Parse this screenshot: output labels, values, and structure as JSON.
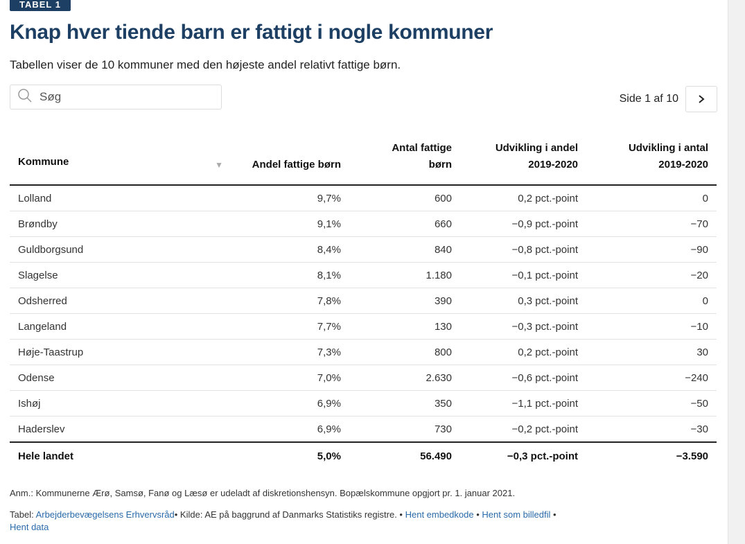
{
  "badge": "TABEL 1",
  "title": "Knap hver tiende barn er fattigt i nogle kommuner",
  "subtitle": "Tabellen viser de 10 kommuner med den højeste andel relativt fattige børn.",
  "search": {
    "placeholder": "Søg"
  },
  "pager": {
    "text": "Side 1 af 10",
    "next": "›"
  },
  "table": {
    "headers": {
      "kommune": "Kommune",
      "andel": "Andel fattige børn",
      "antal": "Antal fattige børn",
      "udv_andel": "Udvikling i andel 2019-2020",
      "udv_antal": "Udvikling i antal 2019-2020"
    },
    "rows": [
      {
        "kommune": "Lolland",
        "andel": "9,7%",
        "antal": "600",
        "udv_andel": "0,2 pct.-point",
        "udv_antal": "0"
      },
      {
        "kommune": "Brøndby",
        "andel": "9,1%",
        "antal": "660",
        "udv_andel": "−0,9 pct.-point",
        "udv_antal": "−70"
      },
      {
        "kommune": "Guldborgsund",
        "andel": "8,4%",
        "antal": "840",
        "udv_andel": "−0,8 pct.-point",
        "udv_antal": "−90"
      },
      {
        "kommune": "Slagelse",
        "andel": "8,1%",
        "antal": "1.180",
        "udv_andel": "−0,1 pct.-point",
        "udv_antal": "−20"
      },
      {
        "kommune": "Odsherred",
        "andel": "7,8%",
        "antal": "390",
        "udv_andel": "0,3 pct.-point",
        "udv_antal": "0"
      },
      {
        "kommune": "Langeland",
        "andel": "7,7%",
        "antal": "130",
        "udv_andel": "−0,3 pct.-point",
        "udv_antal": "−10"
      },
      {
        "kommune": "Høje-Taastrup",
        "andel": "7,3%",
        "antal": "800",
        "udv_andel": "0,2 pct.-point",
        "udv_antal": "30"
      },
      {
        "kommune": "Odense",
        "andel": "7,0%",
        "antal": "2.630",
        "udv_andel": "−0,6 pct.-point",
        "udv_antal": "−240"
      },
      {
        "kommune": "Ishøj",
        "andel": "6,9%",
        "antal": "350",
        "udv_andel": "−1,1 pct.-point",
        "udv_antal": "−50"
      },
      {
        "kommune": "Haderslev",
        "andel": "6,9%",
        "antal": "730",
        "udv_andel": "−0,2 pct.-point",
        "udv_antal": "−30"
      }
    ],
    "total": {
      "kommune": "Hele landet",
      "andel": "5,0%",
      "antal": "56.490",
      "udv_andel": "−0,3 pct.-point",
      "udv_antal": "−3.590"
    }
  },
  "note": "Anm.: Kommunerne Ærø, Samsø, Fanø og Læsø er udeladt af diskretionshensyn. Bopælskommune opgjort pr. 1. januar 2021.",
  "source": {
    "prefix": "Tabel:",
    "org_link": "Arbejderbevægelsens Erhvervsråd",
    "kilde": "• Kilde: AE på baggrund af Danmarks Statistiks registre. •",
    "embed_link": "Hent embedkode",
    "sep1": "•",
    "image_link": "Hent som billedfil",
    "sep2": "•",
    "data_link": "Hent data"
  }
}
